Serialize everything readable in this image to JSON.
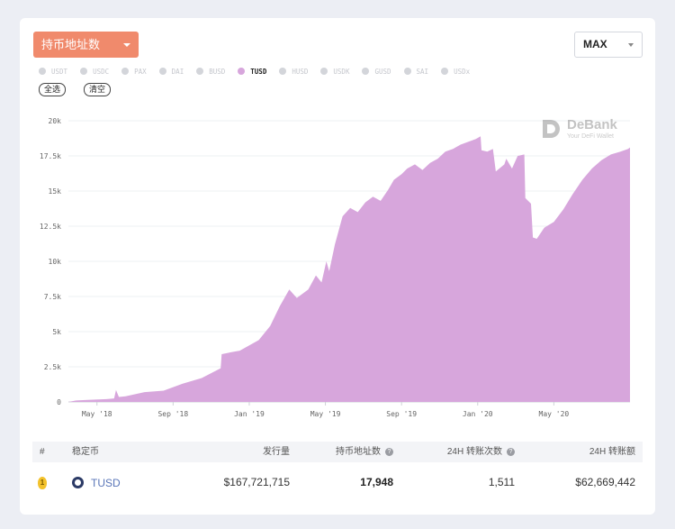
{
  "controls": {
    "metric_label": "持币地址数",
    "range_label": "MAX"
  },
  "legend": [
    {
      "label": "USDT",
      "active": false
    },
    {
      "label": "USDC",
      "active": false
    },
    {
      "label": "PAX",
      "active": false
    },
    {
      "label": "DAI",
      "active": false
    },
    {
      "label": "BUSD",
      "active": false
    },
    {
      "label": "TUSD",
      "active": true
    },
    {
      "label": "HUSD",
      "active": false
    },
    {
      "label": "USDK",
      "active": false
    },
    {
      "label": "GUSD",
      "active": false
    },
    {
      "label": "SAI",
      "active": false
    },
    {
      "label": "USDx",
      "active": false
    }
  ],
  "buttons": {
    "select_all": "全选",
    "clear": "清空"
  },
  "watermark": {
    "title": "DeBank",
    "subtitle": "Your DeFi Wallet"
  },
  "colors": {
    "accent": "#f08a6c",
    "series": "#d7a6dc",
    "gold": "#f3c22c"
  },
  "chart_data": {
    "type": "area",
    "title": "",
    "xlabel": "",
    "ylabel": "",
    "ylim": [
      0,
      20000
    ],
    "y_ticks": [
      0,
      2500,
      5000,
      7500,
      10000,
      12500,
      15000,
      17500,
      20000
    ],
    "y_tick_labels": [
      "0",
      "2.5k",
      "5k",
      "7.5k",
      "10k",
      "12.5k",
      "15k",
      "17.5k",
      "20k"
    ],
    "x_range": [
      "2018-03",
      "2020-08"
    ],
    "x_ticks": [
      {
        "label": "May '18",
        "t": 1.5
      },
      {
        "label": "Sep '18",
        "t": 5.5
      },
      {
        "label": "Jan '19",
        "t": 9.5
      },
      {
        "label": "May '19",
        "t": 13.5
      },
      {
        "label": "Sep '19",
        "t": 17.5
      },
      {
        "label": "Jan '20",
        "t": 21.5
      },
      {
        "label": "May '20",
        "t": 25.5
      }
    ],
    "series": [
      {
        "name": "TUSD",
        "points": [
          [
            0,
            0
          ],
          [
            0.4,
            100
          ],
          [
            1,
            150
          ],
          [
            2,
            200
          ],
          [
            2.4,
            250
          ],
          [
            2.5,
            850
          ],
          [
            2.65,
            350
          ],
          [
            3,
            400
          ],
          [
            4,
            700
          ],
          [
            5,
            800
          ],
          [
            6,
            1300
          ],
          [
            7,
            1700
          ],
          [
            8,
            2400
          ],
          [
            8.05,
            3400
          ],
          [
            8.6,
            3550
          ],
          [
            9,
            3650
          ],
          [
            10,
            4400
          ],
          [
            10.6,
            5400
          ],
          [
            11.1,
            6800
          ],
          [
            11.6,
            8000
          ],
          [
            12,
            7400
          ],
          [
            12.6,
            8000
          ],
          [
            13,
            9000
          ],
          [
            13.3,
            8500
          ],
          [
            13.55,
            10000
          ],
          [
            13.7,
            9300
          ],
          [
            14,
            11200
          ],
          [
            14.4,
            13200
          ],
          [
            14.8,
            13800
          ],
          [
            15.2,
            13500
          ],
          [
            15.6,
            14200
          ],
          [
            16,
            14600
          ],
          [
            16.4,
            14300
          ],
          [
            16.8,
            15100
          ],
          [
            17.1,
            15800
          ],
          [
            17.5,
            16200
          ],
          [
            17.8,
            16600
          ],
          [
            18.2,
            16900
          ],
          [
            18.6,
            16500
          ],
          [
            19,
            17000
          ],
          [
            19.4,
            17300
          ],
          [
            19.8,
            17800
          ],
          [
            20.2,
            18000
          ],
          [
            20.6,
            18300
          ],
          [
            21,
            18500
          ],
          [
            21.4,
            18700
          ],
          [
            21.65,
            18900
          ],
          [
            21.7,
            17900
          ],
          [
            22,
            17800
          ],
          [
            22.3,
            18000
          ],
          [
            22.45,
            16400
          ],
          [
            22.9,
            16900
          ],
          [
            23,
            17300
          ],
          [
            23.3,
            16600
          ],
          [
            23.6,
            17500
          ],
          [
            23.95,
            17600
          ],
          [
            24.0,
            14500
          ],
          [
            24.3,
            14100
          ],
          [
            24.4,
            11700
          ],
          [
            24.6,
            11600
          ],
          [
            25,
            12400
          ],
          [
            25.5,
            12800
          ],
          [
            26,
            13700
          ],
          [
            26.5,
            14800
          ],
          [
            27,
            15800
          ],
          [
            27.5,
            16600
          ],
          [
            28,
            17200
          ],
          [
            28.5,
            17600
          ],
          [
            29,
            17800
          ],
          [
            29.4,
            18000
          ],
          [
            29.5,
            18100
          ]
        ]
      }
    ]
  },
  "table": {
    "headers": {
      "rank": "#",
      "coin": "稳定币",
      "supply": "发行量",
      "holders": "持币地址数",
      "transfers": "24H 转账次数",
      "volume": "24H 转账额"
    },
    "help_icon": "?",
    "rows": [
      {
        "rank": "1",
        "coin": "TUSD",
        "supply": "$167,721,715",
        "holders": "17,948",
        "transfers": "1,511",
        "volume": "$62,669,442"
      }
    ]
  }
}
